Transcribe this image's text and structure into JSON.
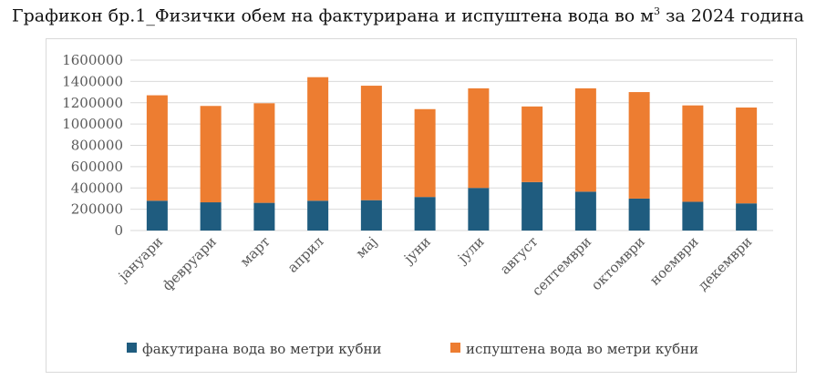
{
  "title": {
    "main": "Графикон бр.1_Физички обем на фактурирана и испуштена вода во м",
    "superscript": "3",
    "suffix": " за 2024 година"
  },
  "chart_data": {
    "type": "bar",
    "stacked": true,
    "title": "Графикон бр.1_Физички обем на фактурирана и испуштена вода во м3 за 2024 година",
    "categories": [
      "јануари",
      "февруари",
      "март",
      "април",
      "мај",
      "јуни",
      "јули",
      "август",
      "септември",
      "октомври",
      "ноември",
      "декември"
    ],
    "series": [
      {
        "name": "факутирана вода во метри кубни",
        "color": "#1f5c7f",
        "values": [
          280000,
          265000,
          260000,
          280000,
          285000,
          315000,
          400000,
          455000,
          365000,
          300000,
          270000,
          255000
        ]
      },
      {
        "name": "испуштена вода во метри кубни",
        "color": "#ed7d31",
        "values": [
          990000,
          905000,
          935000,
          1160000,
          1075000,
          825000,
          935000,
          710000,
          970000,
          1000000,
          905000,
          900000
        ]
      }
    ],
    "yticks": [
      "0",
      "200000",
      "400000",
      "600000",
      "800000",
      "1000000",
      "1200000",
      "1400000",
      "1600000"
    ],
    "ylim": [
      0,
      1600000
    ],
    "xlabel": "",
    "ylabel": "",
    "grid": true,
    "legend": "bottom"
  }
}
